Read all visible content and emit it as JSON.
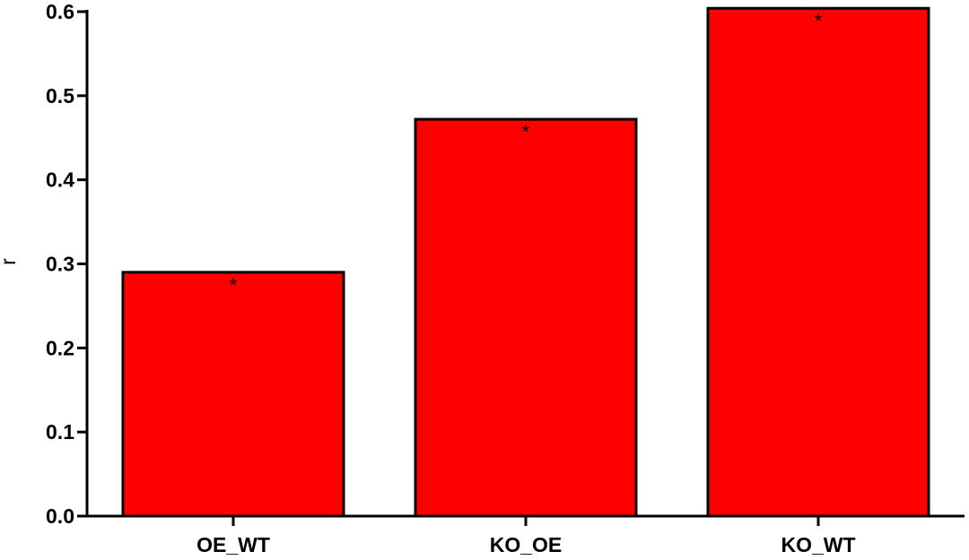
{
  "chart_data": {
    "type": "bar",
    "categories": [
      "OE_WT",
      "KO_OE",
      "KO_WT"
    ],
    "values": [
      0.29,
      0.472,
      0.604
    ],
    "annotations": [
      "*",
      "*",
      "*"
    ],
    "ylabel": "r",
    "xlabel": "",
    "ylim": [
      0,
      0.6
    ],
    "yticks": [
      "0.0",
      "0.1",
      "0.2",
      "0.3",
      "0.4",
      "0.5",
      "0.6"
    ],
    "grid": false,
    "colors": {
      "bar_fill": "#ff0000",
      "bar_stroke": "#000000",
      "axis": "#000000"
    }
  }
}
